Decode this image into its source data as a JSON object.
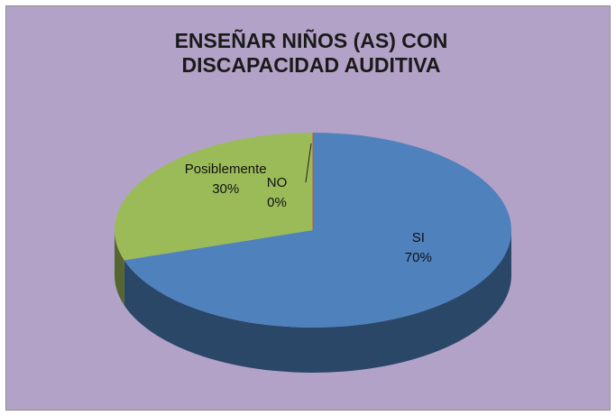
{
  "chart_data": {
    "type": "pie3d",
    "title": "ENSEÑAR NIÑOS (AS) CON DISCAPACIDAD AUDITIVA",
    "categories": [
      "SI",
      "Posiblemente",
      "NO"
    ],
    "values": [
      70,
      30,
      0
    ],
    "value_labels": [
      "70%",
      "30%",
      "0%"
    ],
    "colors": [
      "#4f81bd",
      "#9bbb59",
      "#c0504d"
    ]
  }
}
